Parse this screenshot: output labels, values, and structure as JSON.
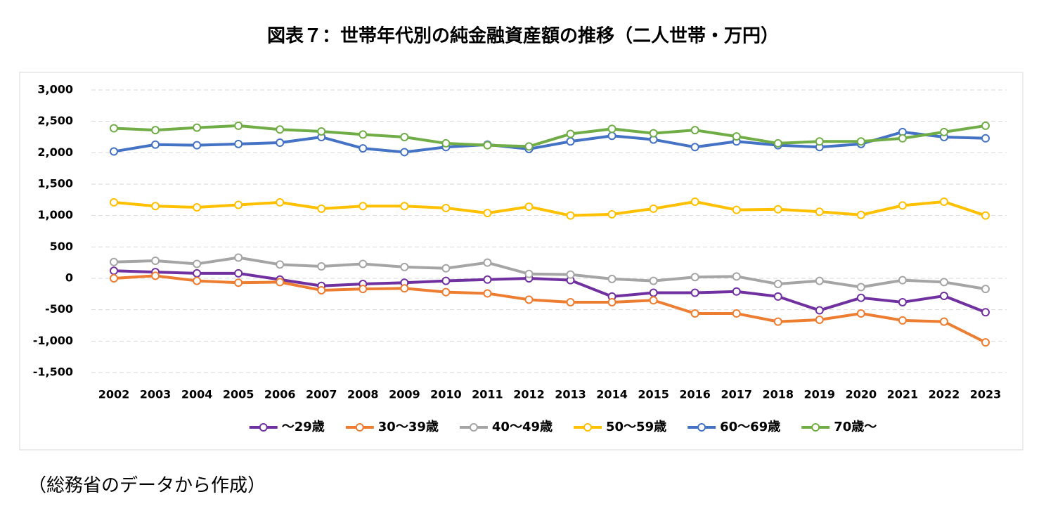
{
  "chart_data": {
    "type": "line",
    "title": "図表７：世帯年代別の純金融資産額の推移（二人世帯・万円）",
    "categories": [
      "2002",
      "2003",
      "2004",
      "2005",
      "2006",
      "2007",
      "2008",
      "2009",
      "2010",
      "2011",
      "2012",
      "2013",
      "2014",
      "2015",
      "2016",
      "2017",
      "2018",
      "2019",
      "2020",
      "2021",
      "2022",
      "2023"
    ],
    "series": [
      {
        "name": "～29歳",
        "color": "#7030a0",
        "values": [
          120,
          100,
          80,
          80,
          -20,
          -120,
          -90,
          -70,
          -40,
          -20,
          0,
          -30,
          -290,
          -230,
          -230,
          -210,
          -290,
          -510,
          -310,
          -380,
          -280,
          -540
        ]
      },
      {
        "name": "30～39歳",
        "color": "#ed7d31",
        "values": [
          0,
          40,
          -40,
          -70,
          -60,
          -190,
          -170,
          -160,
          -220,
          -240,
          -340,
          -380,
          -380,
          -350,
          -560,
          -560,
          -690,
          -660,
          -560,
          -670,
          -690,
          -1020
        ]
      },
      {
        "name": "40～49歳",
        "color": "#a5a5a5",
        "values": [
          260,
          280,
          230,
          330,
          220,
          190,
          230,
          180,
          160,
          250,
          70,
          60,
          -10,
          -40,
          20,
          30,
          -90,
          -40,
          -140,
          -30,
          -60,
          -170
        ]
      },
      {
        "name": "50～59歳",
        "color": "#ffc000",
        "values": [
          1210,
          1150,
          1130,
          1170,
          1210,
          1110,
          1150,
          1150,
          1120,
          1040,
          1140,
          1000,
          1020,
          1110,
          1220,
          1090,
          1100,
          1060,
          1010,
          1160,
          1220,
          1000
        ]
      },
      {
        "name": "60～69歳",
        "color": "#4472c4",
        "values": [
          2020,
          2130,
          2120,
          2140,
          2160,
          2250,
          2070,
          2010,
          2090,
          2130,
          2060,
          2180,
          2270,
          2210,
          2090,
          2180,
          2120,
          2090,
          2140,
          2330,
          2250,
          2230
        ]
      },
      {
        "name": "70歳～",
        "color": "#70ad47",
        "values": [
          2390,
          2360,
          2400,
          2430,
          2370,
          2340,
          2290,
          2250,
          2150,
          2120,
          2100,
          2300,
          2380,
          2310,
          2360,
          2260,
          2150,
          2180,
          2180,
          2230,
          2330,
          2430
        ]
      }
    ],
    "ylim": [
      -1500,
      3000
    ],
    "yticks": [
      {
        "value": 3000,
        "label": "3,000"
      },
      {
        "value": 2500,
        "label": "2,500"
      },
      {
        "value": 2000,
        "label": "2,000"
      },
      {
        "value": 1500,
        "label": "1,500"
      },
      {
        "value": 1000,
        "label": "1,000"
      },
      500,
      0,
      -500,
      {
        "value": -1000,
        "label": "-1,000"
      },
      {
        "value": -1500,
        "label": "-1,500"
      }
    ],
    "grid": true,
    "legend": "bottom",
    "negative_tick_color": "#c00000"
  },
  "source": "（総務省のデータから作成）"
}
